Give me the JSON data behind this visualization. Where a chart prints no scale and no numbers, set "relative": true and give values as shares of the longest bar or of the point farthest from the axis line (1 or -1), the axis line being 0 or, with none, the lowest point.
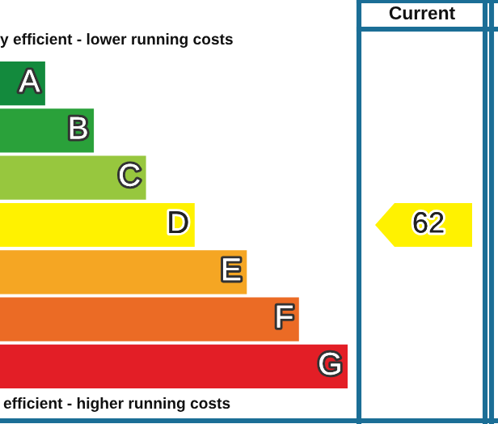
{
  "chart_data": {
    "type": "bar",
    "orientation": "horizontal",
    "relative": true,
    "categories": [
      "A",
      "B",
      "C",
      "D",
      "E",
      "F",
      "G"
    ],
    "values": [
      0.13,
      0.27,
      0.42,
      0.56,
      0.71,
      0.86,
      1
    ],
    "colors": [
      "#138a3d",
      "#2aa13a",
      "#97c73e",
      "#fff200",
      "#f5a623",
      "#eb6b25",
      "#e31e26"
    ],
    "grid": false,
    "legend": false,
    "annotations": [
      "y efficient - lower running costs",
      "efficient - higher running costs",
      "Current",
      "62"
    ]
  }
}
